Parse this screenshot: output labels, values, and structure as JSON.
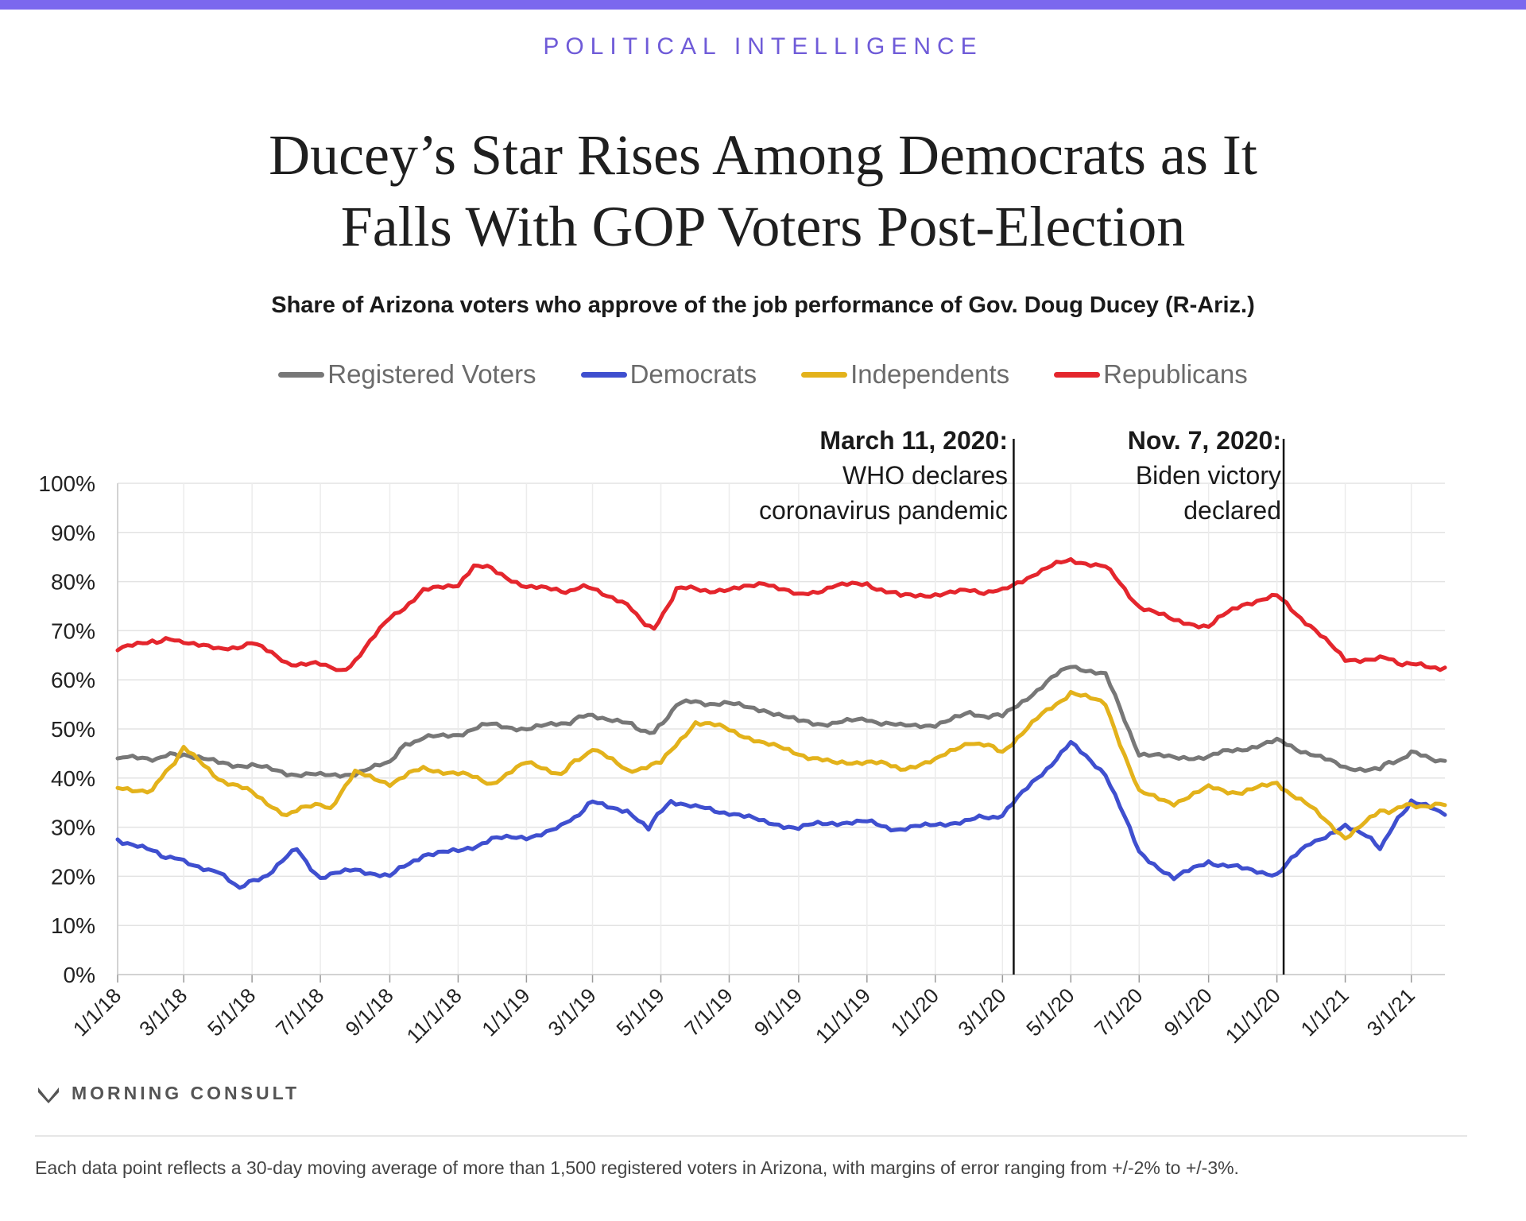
{
  "header": {
    "kicker": "POLITICAL INTELLIGENCE",
    "title_line1": "Ducey’s Star Rises Among Democrats as It",
    "title_line2": "Falls With GOP Voters Post-Election",
    "subtitle": "Share of Arizona voters who approve of the job performance of Gov. Doug Ducey (R-Ariz.)"
  },
  "legend": {
    "registered": "Registered Voters",
    "democrats": "Democrats",
    "independents": "Independents",
    "republicans": "Republicans"
  },
  "annotations": {
    "march": {
      "title": "March 11, 2020:",
      "line1": "WHO declares",
      "line2": "coronavirus pandemic"
    },
    "november": {
      "title": "Nov. 7, 2020:",
      "line1": "Biden victory",
      "line2": "declared"
    }
  },
  "brand": {
    "name": "MORNING CONSULT"
  },
  "footnote": "Each data point reflects a 30-day moving average of more than 1,500 registered voters in Arizona, with margins of error ranging from +/-2% to +/-3%.",
  "colors": {
    "registered": "#777777",
    "democrats": "#3f4fcf",
    "independents": "#e3b21b",
    "republicans": "#e4262d",
    "accent": "#7b68ee"
  },
  "chart_data": {
    "type": "line",
    "ylim": [
      0,
      100
    ],
    "y_ticks": [
      "0%",
      "10%",
      "20%",
      "30%",
      "40%",
      "50%",
      "60%",
      "70%",
      "80%",
      "90%",
      "100%"
    ],
    "x_range": [
      "2018-01-01",
      "2021-03-31"
    ],
    "x_ticks": [
      {
        "date": "2018-01-01",
        "label": "1/1/18"
      },
      {
        "date": "2018-03-01",
        "label": "3/1/18"
      },
      {
        "date": "2018-05-01",
        "label": "5/1/18"
      },
      {
        "date": "2018-07-01",
        "label": "7/1/18"
      },
      {
        "date": "2018-09-01",
        "label": "9/1/18"
      },
      {
        "date": "2018-11-01",
        "label": "11/1/18"
      },
      {
        "date": "2019-01-01",
        "label": "1/1/19"
      },
      {
        "date": "2019-03-01",
        "label": "3/1/19"
      },
      {
        "date": "2019-05-01",
        "label": "5/1/19"
      },
      {
        "date": "2019-07-01",
        "label": "7/1/19"
      },
      {
        "date": "2019-09-01",
        "label": "9/1/19"
      },
      {
        "date": "2019-11-01",
        "label": "11/1/19"
      },
      {
        "date": "2020-01-01",
        "label": "1/1/20"
      },
      {
        "date": "2020-03-01",
        "label": "3/1/20"
      },
      {
        "date": "2020-05-01",
        "label": "5/1/20"
      },
      {
        "date": "2020-07-01",
        "label": "7/1/20"
      },
      {
        "date": "2020-09-01",
        "label": "9/1/20"
      },
      {
        "date": "2020-11-01",
        "label": "11/1/20"
      },
      {
        "date": "2021-01-01",
        "label": "1/1/21"
      },
      {
        "date": "2021-03-01",
        "label": "3/1/21"
      }
    ],
    "event_lines": [
      {
        "date": "2020-03-11"
      },
      {
        "date": "2020-11-07"
      }
    ],
    "grid": true,
    "legend_position": "top",
    "series": [
      {
        "name": "Registered Voters",
        "color": "#777777",
        "points": [
          [
            "2018-01-01",
            44
          ],
          [
            "2018-02-01",
            44
          ],
          [
            "2018-03-01",
            45
          ],
          [
            "2018-04-01",
            43
          ],
          [
            "2018-05-01",
            42.5
          ],
          [
            "2018-06-01",
            41
          ],
          [
            "2018-07-01",
            40.5
          ],
          [
            "2018-08-01",
            41
          ],
          [
            "2018-09-01",
            43
          ],
          [
            "2018-09-15",
            47
          ],
          [
            "2018-10-01",
            48
          ],
          [
            "2018-11-01",
            49
          ],
          [
            "2018-12-01",
            51
          ],
          [
            "2019-01-01",
            50
          ],
          [
            "2019-02-01",
            51
          ],
          [
            "2019-03-01",
            53
          ],
          [
            "2019-04-01",
            51
          ],
          [
            "2019-04-25",
            49
          ],
          [
            "2019-05-15",
            55
          ],
          [
            "2019-06-01",
            55.5
          ],
          [
            "2019-07-01",
            55
          ],
          [
            "2019-08-01",
            54
          ],
          [
            "2019-09-01",
            51.5
          ],
          [
            "2019-10-01",
            51
          ],
          [
            "2019-11-01",
            52
          ],
          [
            "2019-12-01",
            50.5
          ],
          [
            "2020-01-01",
            51
          ],
          [
            "2020-02-01",
            53
          ],
          [
            "2020-03-01",
            52.5
          ],
          [
            "2020-04-01",
            58
          ],
          [
            "2020-05-01",
            63
          ],
          [
            "2020-06-01",
            61
          ],
          [
            "2020-07-01",
            45
          ],
          [
            "2020-08-01",
            44
          ],
          [
            "2020-09-01",
            44.5
          ],
          [
            "2020-10-01",
            46
          ],
          [
            "2020-11-01",
            47.5
          ],
          [
            "2020-12-01",
            45
          ],
          [
            "2021-01-01",
            42
          ],
          [
            "2021-02-01",
            42
          ],
          [
            "2021-03-01",
            45
          ],
          [
            "2021-03-31",
            43.5
          ]
        ]
      },
      {
        "name": "Democrats",
        "color": "#3f4fcf",
        "points": [
          [
            "2018-01-01",
            27.5
          ],
          [
            "2018-02-01",
            25
          ],
          [
            "2018-03-01",
            23
          ],
          [
            "2018-04-01",
            21
          ],
          [
            "2018-04-20",
            17.5
          ],
          [
            "2018-05-15",
            20.5
          ],
          [
            "2018-06-10",
            25.5
          ],
          [
            "2018-07-01",
            19.5
          ],
          [
            "2018-08-01",
            21.5
          ],
          [
            "2018-09-01",
            20
          ],
          [
            "2018-10-01",
            24.5
          ],
          [
            "2018-11-01",
            25
          ],
          [
            "2018-12-01",
            27.5
          ],
          [
            "2019-01-01",
            28
          ],
          [
            "2019-02-01",
            30
          ],
          [
            "2019-03-01",
            35
          ],
          [
            "2019-04-01",
            33.5
          ],
          [
            "2019-04-20",
            30
          ],
          [
            "2019-05-10",
            35.5
          ],
          [
            "2019-06-01",
            34
          ],
          [
            "2019-07-01",
            33
          ],
          [
            "2019-08-01",
            31
          ],
          [
            "2019-09-01",
            30
          ],
          [
            "2019-10-01",
            31
          ],
          [
            "2019-11-01",
            31
          ],
          [
            "2019-12-01",
            29.5
          ],
          [
            "2020-01-01",
            30.5
          ],
          [
            "2020-02-01",
            31.5
          ],
          [
            "2020-03-01",
            32.5
          ],
          [
            "2020-04-01",
            40
          ],
          [
            "2020-05-01",
            47
          ],
          [
            "2020-06-01",
            41
          ],
          [
            "2020-07-01",
            25
          ],
          [
            "2020-08-01",
            19.5
          ],
          [
            "2020-09-01",
            23
          ],
          [
            "2020-10-01",
            21.5
          ],
          [
            "2020-11-01",
            20.5
          ],
          [
            "2020-12-01",
            27
          ],
          [
            "2021-01-01",
            30
          ],
          [
            "2021-01-20",
            28
          ],
          [
            "2021-02-01",
            26
          ],
          [
            "2021-03-01",
            35.5
          ],
          [
            "2021-03-31",
            32.5
          ]
        ]
      },
      {
        "name": "Independents",
        "color": "#e3b21b",
        "points": [
          [
            "2018-01-01",
            38
          ],
          [
            "2018-02-01",
            37.5
          ],
          [
            "2018-03-01",
            46
          ],
          [
            "2018-04-01",
            40
          ],
          [
            "2018-05-01",
            37
          ],
          [
            "2018-06-01",
            32.5
          ],
          [
            "2018-07-01",
            35
          ],
          [
            "2018-07-10",
            34
          ],
          [
            "2018-08-01",
            41
          ],
          [
            "2018-09-01",
            39
          ],
          [
            "2018-10-01",
            42
          ],
          [
            "2018-11-01",
            41
          ],
          [
            "2018-12-01",
            39
          ],
          [
            "2019-01-01",
            43
          ],
          [
            "2019-02-01",
            41
          ],
          [
            "2019-03-01",
            46
          ],
          [
            "2019-04-01",
            41.5
          ],
          [
            "2019-05-01",
            43
          ],
          [
            "2019-06-01",
            51.5
          ],
          [
            "2019-07-01",
            50
          ],
          [
            "2019-08-01",
            47
          ],
          [
            "2019-09-01",
            45
          ],
          [
            "2019-10-01",
            43
          ],
          [
            "2019-11-01",
            43.5
          ],
          [
            "2019-12-01",
            42
          ],
          [
            "2020-01-01",
            43.5
          ],
          [
            "2020-02-01",
            47.5
          ],
          [
            "2020-03-01",
            45.5
          ],
          [
            "2020-04-01",
            52
          ],
          [
            "2020-05-01",
            57.5
          ],
          [
            "2020-06-01",
            55
          ],
          [
            "2020-07-01",
            37
          ],
          [
            "2020-08-01",
            35
          ],
          [
            "2020-09-01",
            38
          ],
          [
            "2020-10-01",
            37
          ],
          [
            "2020-11-01",
            39
          ],
          [
            "2020-12-01",
            34
          ],
          [
            "2021-01-01",
            28
          ],
          [
            "2021-02-01",
            33
          ],
          [
            "2021-03-01",
            34.5
          ],
          [
            "2021-03-31",
            34.5
          ]
        ]
      },
      {
        "name": "Republicans",
        "color": "#e4262d",
        "points": [
          [
            "2018-01-01",
            66
          ],
          [
            "2018-02-01",
            68
          ],
          [
            "2018-03-01",
            68
          ],
          [
            "2018-04-01",
            66
          ],
          [
            "2018-05-01",
            67.5
          ],
          [
            "2018-06-01",
            63.5
          ],
          [
            "2018-07-01",
            63
          ],
          [
            "2018-07-20",
            61.5
          ],
          [
            "2018-08-01",
            64
          ],
          [
            "2018-09-01",
            72.5
          ],
          [
            "2018-10-01",
            78
          ],
          [
            "2018-11-01",
            79.5
          ],
          [
            "2018-11-15",
            83.5
          ],
          [
            "2018-12-01",
            82.5
          ],
          [
            "2019-01-01",
            79
          ],
          [
            "2019-02-01",
            78
          ],
          [
            "2019-03-01",
            79
          ],
          [
            "2019-04-01",
            75
          ],
          [
            "2019-04-25",
            70
          ],
          [
            "2019-05-15",
            78.5
          ],
          [
            "2019-06-01",
            78.5
          ],
          [
            "2019-07-01",
            78
          ],
          [
            "2019-08-01",
            80
          ],
          [
            "2019-09-01",
            77
          ],
          [
            "2019-10-01",
            79
          ],
          [
            "2019-11-01",
            79.5
          ],
          [
            "2019-12-01",
            77
          ],
          [
            "2020-01-01",
            77.5
          ],
          [
            "2020-02-01",
            78
          ],
          [
            "2020-03-01",
            78
          ],
          [
            "2020-04-01",
            82
          ],
          [
            "2020-05-01",
            84.5
          ],
          [
            "2020-06-01",
            83
          ],
          [
            "2020-07-01",
            75
          ],
          [
            "2020-08-01",
            72
          ],
          [
            "2020-09-01",
            71
          ],
          [
            "2020-10-01",
            75.5
          ],
          [
            "2020-11-01",
            77
          ],
          [
            "2020-12-01",
            71
          ],
          [
            "2021-01-01",
            64
          ],
          [
            "2021-02-01",
            64.5
          ],
          [
            "2021-03-01",
            63
          ],
          [
            "2021-03-31",
            62.5
          ]
        ]
      }
    ]
  }
}
